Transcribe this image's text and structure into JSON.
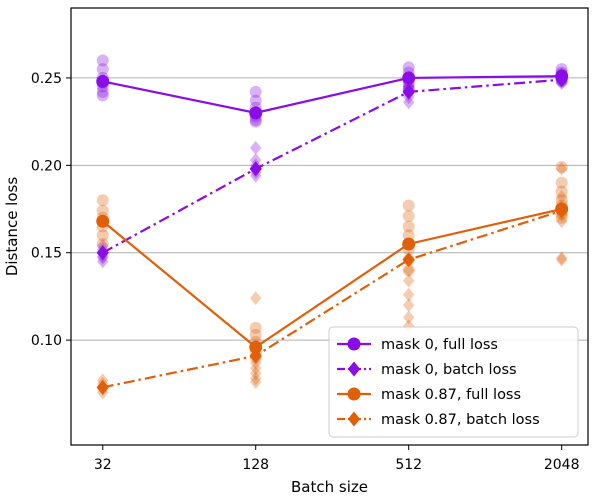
{
  "chart_data": {
    "type": "line",
    "title": "",
    "xlabel": "Batch size",
    "ylabel": "Distance loss",
    "x_scale": "log2",
    "categories": [
      "32",
      "128",
      "512",
      "2048"
    ],
    "x": [
      32,
      128,
      512,
      2048
    ],
    "xlim": [
      24,
      2600
    ],
    "ylim": [
      0.04,
      0.29
    ],
    "y_ticks": [
      0.1,
      0.15,
      0.2,
      0.25
    ],
    "y_tick_labels": [
      "0.10",
      "0.15",
      "0.20",
      "0.25"
    ],
    "grid": "horizontal",
    "legend": "bottom-right",
    "series": [
      {
        "name": "mask 0, full loss",
        "color": "#8a0ce6",
        "marker": "circle",
        "linestyle": "solid",
        "values": [
          0.248,
          0.23,
          0.25,
          0.251
        ],
        "scatter": [
          [
            0.26,
            0.255,
            0.25,
            0.247,
            0.245,
            0.242,
            0.24
          ],
          [
            0.242,
            0.237,
            0.233,
            0.23,
            0.228,
            0.226,
            0.225
          ],
          [
            0.256,
            0.253,
            0.25,
            0.248,
            0.246,
            0.244,
            0.243
          ],
          [
            0.255,
            0.253,
            0.252,
            0.251,
            0.25,
            0.249,
            0.248
          ]
        ]
      },
      {
        "name": "mask 0, batch loss",
        "color": "#8a0ce6",
        "marker": "diamond",
        "linestyle": "dashdot",
        "values": [
          0.15,
          0.198,
          0.242,
          0.249
        ],
        "scatter": [
          [
            0.154,
            0.152,
            0.15,
            0.148,
            0.147,
            0.145
          ],
          [
            0.21,
            0.203,
            0.2,
            0.198,
            0.196,
            0.194
          ],
          [
            0.248,
            0.245,
            0.243,
            0.241,
            0.239,
            0.236
          ],
          [
            0.252,
            0.251,
            0.25,
            0.249,
            0.248,
            0.247
          ]
        ]
      },
      {
        "name": "mask 0.87, full loss",
        "color": "#e0600a",
        "marker": "circle",
        "linestyle": "solid",
        "values": [
          0.168,
          0.096,
          0.155,
          0.175
        ],
        "scatter": [
          [
            0.18,
            0.174,
            0.17,
            0.165,
            0.16,
            0.155
          ],
          [
            0.107,
            0.103,
            0.099,
            0.096,
            0.093,
            0.09
          ],
          [
            0.177,
            0.171,
            0.165,
            0.16,
            0.152,
            0.146,
            0.14
          ],
          [
            0.199,
            0.19,
            0.185,
            0.18,
            0.177,
            0.172,
            0.17
          ]
        ]
      },
      {
        "name": "mask 0.87, batch loss",
        "color": "#e0600a",
        "marker": "diamond",
        "linestyle": "dashdot",
        "values": [
          0.073,
          0.091,
          0.146,
          0.174
        ],
        "scatter": [
          [
            0.077,
            0.075,
            0.073,
            0.072,
            0.07
          ],
          [
            0.124,
            0.09,
            0.087,
            0.084,
            0.081,
            0.078,
            0.076
          ],
          [
            0.14,
            0.134,
            0.126,
            0.12,
            0.113,
            0.108
          ],
          [
            0.198,
            0.182,
            0.176,
            0.172,
            0.168,
            0.147,
            0.146
          ]
        ]
      }
    ]
  }
}
